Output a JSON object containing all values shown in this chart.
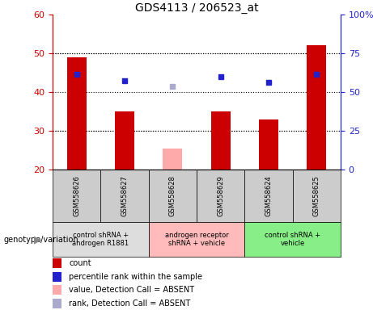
{
  "title": "GDS4113 / 206523_at",
  "samples": [
    "GSM558626",
    "GSM558627",
    "GSM558628",
    "GSM558629",
    "GSM558624",
    "GSM558625"
  ],
  "bar_values": [
    49,
    35,
    null,
    35,
    33,
    52
  ],
  "bar_absent_values": [
    null,
    null,
    25.5,
    null,
    null,
    null
  ],
  "dot_values": [
    44.5,
    43,
    null,
    44,
    42.5,
    44.5
  ],
  "dot_absent_values": [
    null,
    null,
    41.5,
    null,
    null,
    null
  ],
  "ylim": [
    20,
    60
  ],
  "y_left_ticks": [
    20,
    30,
    40,
    50,
    60
  ],
  "y_right_ticks": [
    0,
    25,
    50,
    75,
    100
  ],
  "bar_color": "#cc0000",
  "bar_absent_color": "#ffaaaa",
  "dot_color": "#2222cc",
  "dot_absent_color": "#aaaacc",
  "genotype_groups": [
    {
      "label": "control shRNA +\nandrogen R1881",
      "span": [
        0,
        2
      ],
      "color": "#dddddd"
    },
    {
      "label": "androgen receptor\nshRNA + vehicle",
      "span": [
        2,
        4
      ],
      "color": "#ffbbbb"
    },
    {
      "label": "control shRNA +\nvehicle",
      "span": [
        4,
        6
      ],
      "color": "#88ee88"
    }
  ],
  "legend_items": [
    {
      "color": "#cc0000",
      "label": "count"
    },
    {
      "color": "#2222cc",
      "label": "percentile rank within the sample"
    },
    {
      "color": "#ffaaaa",
      "label": "value, Detection Call = ABSENT"
    },
    {
      "color": "#aaaacc",
      "label": "rank, Detection Call = ABSENT"
    }
  ],
  "left_axis_color": "#cc0000",
  "right_axis_color": "#2222cc",
  "bar_width": 0.4,
  "sample_box_color": "#cccccc",
  "genotype_label": "genotype/variation"
}
